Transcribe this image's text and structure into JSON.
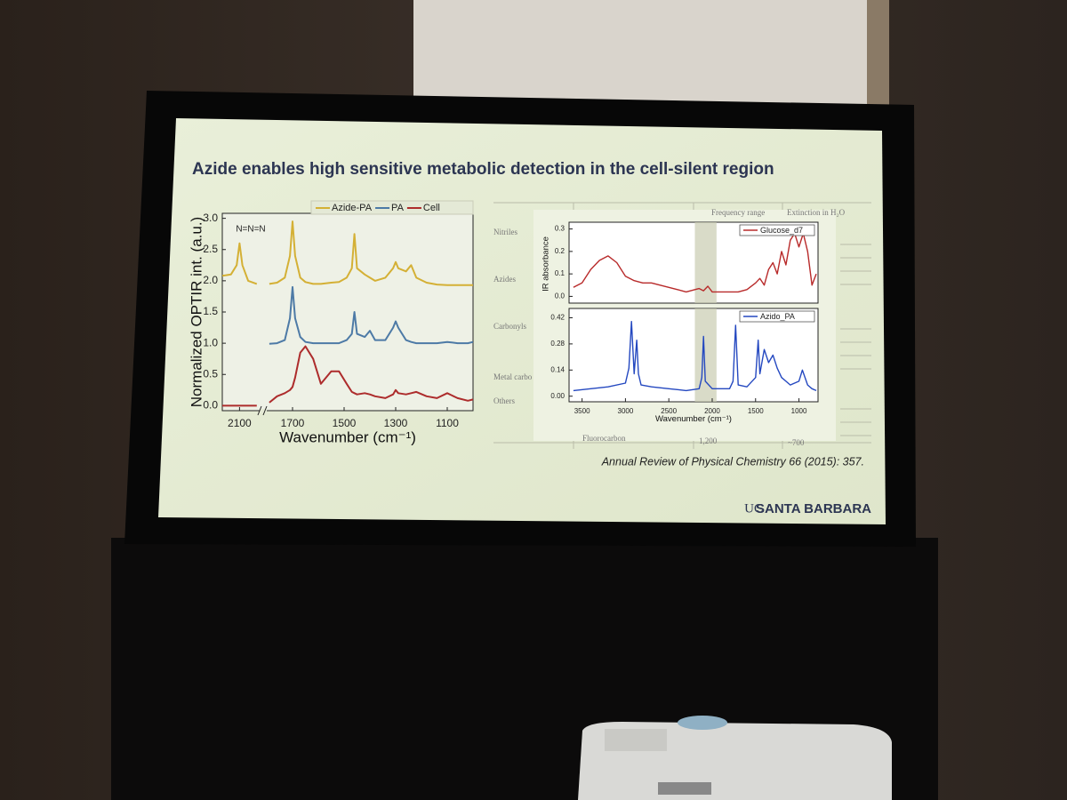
{
  "slide": {
    "title": "Azide enables high sensitive metabolic detection in the cell-silent region",
    "citation": "Annual Review of Physical Chemistry 66 (2015): 357.",
    "logo_prefix": "UC",
    "logo_name": "SANTA BARBARA"
  },
  "background_table": {
    "headers": [
      "Frequency range",
      "Extinction in H₂O"
    ],
    "rows": [
      "Nitriles",
      "Azides",
      "Carbonyls",
      "Metal carbo",
      "Others"
    ],
    "footer": [
      "Fluorocarbon",
      "1,200",
      "~700"
    ]
  },
  "chart_data": [
    {
      "type": "line",
      "legend": "top",
      "annotation": "N=N=N",
      "xlabel": "Wavenumber (cm⁻¹)",
      "ylabel": "Normalized OPTIR int. (a.u.)",
      "xlim": [
        2160,
        1000
      ],
      "xbreak": [
        2030,
        1800
      ],
      "xticks": [
        2100,
        1700,
        1500,
        1300,
        1100
      ],
      "ylim": [
        -0.08,
        3.08
      ],
      "yticks": [
        {
          "value": 0,
          "label": "0.0"
        },
        {
          "value": 0.5,
          "label": "0.5"
        },
        {
          "value": 1,
          "label": "1.0"
        },
        {
          "value": 1.5,
          "label": "1.5"
        },
        {
          "value": 2,
          "label": "2.0"
        },
        {
          "value": 2.5,
          "label": "2.5"
        },
        {
          "value": 3,
          "label": "3.0"
        }
      ],
      "x": [
        2160,
        2130,
        2110,
        2100,
        2090,
        2070,
        2040,
        1790,
        1760,
        1730,
        1710,
        1700,
        1690,
        1670,
        1650,
        1620,
        1590,
        1550,
        1520,
        1490,
        1470,
        1460,
        1450,
        1420,
        1400,
        1380,
        1340,
        1310,
        1300,
        1290,
        1260,
        1240,
        1220,
        1180,
        1140,
        1100,
        1060,
        1020,
        1000
      ],
      "series": [
        {
          "name": "Azide-PA",
          "color": "#d4b035",
          "values": [
            2.08,
            2.1,
            2.25,
            2.6,
            2.25,
            2.0,
            1.95,
            1.95,
            1.97,
            2.05,
            2.4,
            2.95,
            2.4,
            2.05,
            1.98,
            1.95,
            1.95,
            1.97,
            1.98,
            2.05,
            2.2,
            2.75,
            2.2,
            2.1,
            2.05,
            2.0,
            2.05,
            2.2,
            2.3,
            2.2,
            2.15,
            2.25,
            2.05,
            1.97,
            1.94,
            1.93,
            1.93,
            1.93,
            1.93
          ]
        },
        {
          "name": "PA",
          "color": "#4d7aa6",
          "values": [
            null,
            null,
            null,
            null,
            null,
            null,
            null,
            0.99,
            1.0,
            1.05,
            1.4,
            1.9,
            1.4,
            1.1,
            1.02,
            1.0,
            1.0,
            1.0,
            1.0,
            1.05,
            1.15,
            1.5,
            1.15,
            1.1,
            1.2,
            1.05,
            1.05,
            1.25,
            1.35,
            1.25,
            1.05,
            1.02,
            1.0,
            1.0,
            1.0,
            1.02,
            1.0,
            1.0,
            1.02
          ]
        },
        {
          "name": "Cell",
          "color": "#ad2c2c",
          "values": [
            0,
            0,
            0,
            0,
            0,
            0,
            0,
            0.05,
            0.15,
            0.2,
            0.25,
            0.3,
            0.45,
            0.85,
            0.95,
            0.75,
            0.35,
            0.55,
            0.55,
            0.35,
            0.22,
            0.2,
            0.18,
            0.2,
            0.18,
            0.15,
            0.12,
            0.18,
            0.25,
            0.2,
            0.18,
            0.2,
            0.22,
            0.15,
            0.12,
            0.2,
            0.12,
            0.08,
            0.1
          ]
        }
      ]
    },
    {
      "type": "line",
      "legend": "upper right",
      "xlim": [
        3650,
        780
      ],
      "highlight": [
        2200,
        1950
      ],
      "ylim": [
        -0.03,
        0.33
      ],
      "yticks": [
        {
          "value": 0,
          "label": "0.0"
        },
        {
          "value": 0.1,
          "label": "0.1"
        },
        {
          "value": 0.2,
          "label": "0.2"
        },
        {
          "value": 0.3,
          "label": "0.3"
        }
      ],
      "x": [
        3600,
        3500,
        3400,
        3300,
        3200,
        3100,
        3000,
        2900,
        2800,
        2700,
        2600,
        2500,
        2400,
        2300,
        2200,
        2150,
        2100,
        2050,
        2000,
        1900,
        1800,
        1700,
        1600,
        1500,
        1450,
        1400,
        1350,
        1300,
        1250,
        1200,
        1150,
        1100,
        1050,
        1000,
        950,
        900,
        850,
        800
      ],
      "series": [
        {
          "name": "Glucose_d7",
          "color": "#b82a2a",
          "values": [
            0.04,
            0.06,
            0.12,
            0.16,
            0.18,
            0.15,
            0.09,
            0.07,
            0.06,
            0.06,
            0.05,
            0.04,
            0.03,
            0.02,
            0.03,
            0.035,
            0.025,
            0.045,
            0.02,
            0.02,
            0.02,
            0.02,
            0.03,
            0.06,
            0.08,
            0.05,
            0.12,
            0.15,
            0.1,
            0.2,
            0.14,
            0.25,
            0.28,
            0.22,
            0.28,
            0.2,
            0.05,
            0.1
          ]
        }
      ]
    },
    {
      "type": "line",
      "legend": "upper right",
      "xlabel": "Wavenumber (cm⁻¹)",
      "ylabel": "IR absorbance",
      "xlim": [
        3650,
        780
      ],
      "highlight": [
        2200,
        1950
      ],
      "xticks": [
        3500,
        3000,
        2500,
        2000,
        1500,
        1000
      ],
      "ylim": [
        -0.03,
        0.47
      ],
      "yticks": [
        {
          "value": 0,
          "label": "0.00"
        },
        {
          "value": 0.14,
          "label": "0.14"
        },
        {
          "value": 0.28,
          "label": "0.28"
        },
        {
          "value": 0.42,
          "label": "0.42"
        }
      ],
      "x": [
        3600,
        3400,
        3200,
        3000,
        2960,
        2930,
        2900,
        2870,
        2850,
        2820,
        2700,
        2500,
        2300,
        2150,
        2120,
        2100,
        2080,
        2000,
        1800,
        1760,
        1730,
        1700,
        1600,
        1500,
        1470,
        1450,
        1400,
        1350,
        1300,
        1250,
        1200,
        1150,
        1100,
        1000,
        960,
        900,
        850,
        800
      ],
      "series": [
        {
          "name": "Azido_PA",
          "color": "#2448c0",
          "values": [
            0.03,
            0.04,
            0.05,
            0.07,
            0.15,
            0.4,
            0.12,
            0.3,
            0.12,
            0.06,
            0.05,
            0.04,
            0.03,
            0.04,
            0.1,
            0.32,
            0.08,
            0.04,
            0.04,
            0.08,
            0.38,
            0.06,
            0.05,
            0.1,
            0.3,
            0.12,
            0.25,
            0.18,
            0.22,
            0.15,
            0.1,
            0.08,
            0.06,
            0.08,
            0.14,
            0.06,
            0.04,
            0.03
          ]
        }
      ]
    }
  ]
}
